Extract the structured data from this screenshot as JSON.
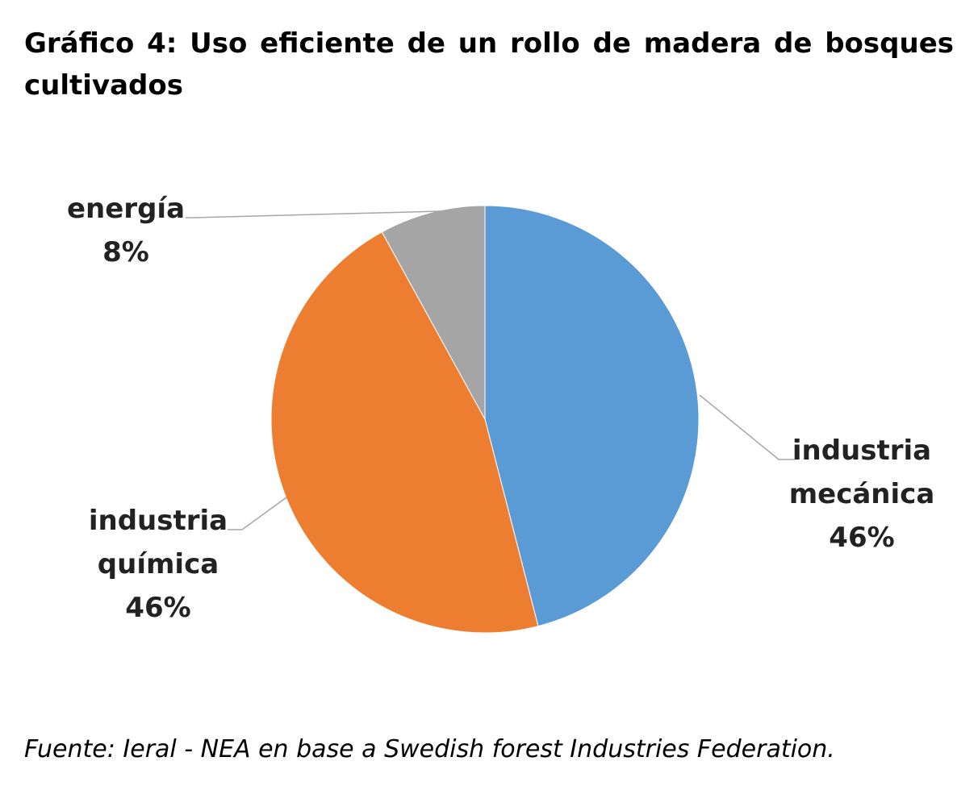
{
  "title": "Gráfico 4: Uso eficiente de un rollo de madera de bosques cultivados",
  "source": "Fuente: Ieral - NEA en base a Swedish forest Industries Federation.",
  "chart_data": {
    "type": "pie",
    "slices": [
      {
        "label_lines": [
          "industria",
          "mecánica"
        ],
        "pct_label": "46%",
        "value": 46,
        "color": "#5b9bd5"
      },
      {
        "label_lines": [
          "industria",
          "química"
        ],
        "pct_label": "46%",
        "value": 46,
        "color": "#ed7d31"
      },
      {
        "label_lines": [
          "energía"
        ],
        "pct_label": "8%",
        "value": 8,
        "color": "#a5a5a5"
      }
    ],
    "start": "12 o'clock",
    "direction": "clockwise",
    "legend": "none"
  }
}
